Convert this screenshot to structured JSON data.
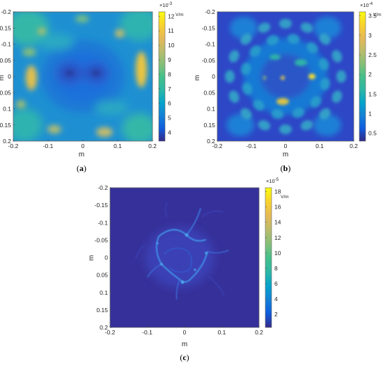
{
  "chart_data": [
    {
      "id": "a",
      "type": "heatmap",
      "panel_label": "a",
      "xlabel": "m",
      "ylabel": "m",
      "xlim": [
        -0.2,
        0.2
      ],
      "ylim": [
        -0.2,
        0.2
      ],
      "y_reversed": true,
      "xticks": [
        "-0.2",
        "-0.1",
        "0",
        "0.1",
        "0.2"
      ],
      "yticks": [
        "-0.2",
        "-0.15",
        "-0.1",
        "-0.05",
        "0",
        "0.05",
        "0.1",
        "0.15",
        "0.2"
      ],
      "colorbar": {
        "ticks": [
          "12",
          "11",
          "10",
          "9",
          "8",
          "7",
          "6",
          "5",
          "4"
        ],
        "tick_values": [
          12,
          11,
          10,
          9,
          8,
          7,
          6,
          5,
          4
        ],
        "range": [
          3.4,
          12.3
        ],
        "multiplier": "×10",
        "exponent": "-3",
        "unit": "V/m"
      },
      "colormap": "parula"
    },
    {
      "id": "b",
      "type": "heatmap",
      "panel_label": "b",
      "xlabel": "m",
      "ylabel": "m",
      "xlim": [
        -0.2,
        0.2
      ],
      "ylim": [
        -0.2,
        0.2
      ],
      "y_reversed": true,
      "xticks": [
        "-0.2",
        "-0.1",
        "0",
        "0.1",
        "0.2"
      ],
      "yticks": [
        "-0.2",
        "-0.15",
        "-0.1",
        "-0.05",
        "0",
        "0.05",
        "0.1",
        "0.15",
        "0.2"
      ],
      "colorbar": {
        "ticks": [
          "3.5",
          "3",
          "2.5",
          "2",
          "1.5",
          "1",
          "0.5"
        ],
        "tick_values": [
          3.5,
          3,
          2.5,
          2,
          1.5,
          1,
          0.5
        ],
        "range": [
          0.3,
          3.6
        ],
        "multiplier": "×10",
        "exponent": "-4",
        "unit": "V/m"
      },
      "colormap": "parula"
    },
    {
      "id": "c",
      "type": "heatmap",
      "panel_label": "c",
      "xlabel": "m",
      "ylabel": "m",
      "xlim": [
        -0.2,
        0.2
      ],
      "ylim": [
        -0.2,
        0.2
      ],
      "y_reversed": true,
      "xticks": [
        "-0.2",
        "-0.1",
        "0",
        "0.1",
        "0.2"
      ],
      "yticks": [
        "-0.2",
        "-0.15",
        "-0.1",
        "-0.05",
        "0",
        "0.05",
        "0.1",
        "0.15",
        "0.2"
      ],
      "colorbar": {
        "ticks": [
          "18",
          "16",
          "14",
          "12",
          "10",
          "8",
          "6",
          "4",
          "2"
        ],
        "tick_values": [
          18,
          16,
          14,
          12,
          10,
          8,
          6,
          4,
          2
        ],
        "range": [
          0.3,
          18.5
        ],
        "multiplier": "×10",
        "exponent": "-5",
        "unit": "V/m"
      },
      "colormap": "parula"
    }
  ]
}
